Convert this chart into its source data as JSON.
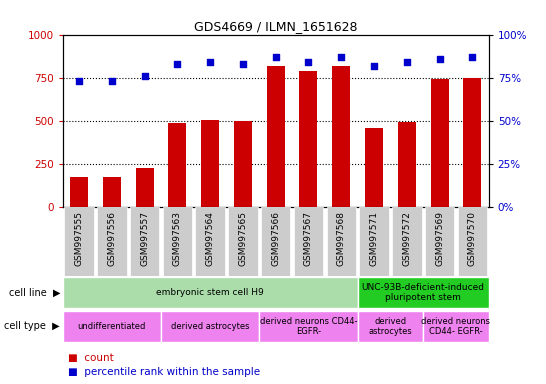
{
  "title": "GDS4669 / ILMN_1651628",
  "samples": [
    "GSM997555",
    "GSM997556",
    "GSM997557",
    "GSM997563",
    "GSM997564",
    "GSM997565",
    "GSM997566",
    "GSM997567",
    "GSM997568",
    "GSM997571",
    "GSM997572",
    "GSM997569",
    "GSM997570"
  ],
  "counts": [
    175,
    175,
    230,
    490,
    505,
    500,
    820,
    790,
    820,
    460,
    495,
    740,
    750
  ],
  "percentiles": [
    73,
    73,
    76,
    83,
    84,
    83,
    87,
    84,
    87,
    82,
    84,
    86,
    87
  ],
  "bar_color": "#cc0000",
  "dot_color": "#0000cc",
  "ylim_left": [
    0,
    1000
  ],
  "ylim_right": [
    0,
    100
  ],
  "yticks_left": [
    0,
    250,
    500,
    750,
    1000
  ],
  "yticks_right": [
    0,
    25,
    50,
    75,
    100
  ],
  "cell_line_groups": [
    {
      "label": "embryonic stem cell H9",
      "start": 0,
      "end": 9,
      "color": "#aaddaa"
    },
    {
      "label": "UNC-93B-deficient-induced\npluripotent stem",
      "start": 9,
      "end": 13,
      "color": "#22cc22"
    }
  ],
  "cell_type_groups": [
    {
      "label": "undifferentiated",
      "start": 0,
      "end": 3,
      "color": "#ee82ee"
    },
    {
      "label": "derived astrocytes",
      "start": 3,
      "end": 6,
      "color": "#ee82ee"
    },
    {
      "label": "derived neurons CD44-\nEGFR-",
      "start": 6,
      "end": 9,
      "color": "#ee82ee"
    },
    {
      "label": "derived\nastrocytes",
      "start": 9,
      "end": 11,
      "color": "#ee82ee"
    },
    {
      "label": "derived neurons\nCD44- EGFR-",
      "start": 11,
      "end": 13,
      "color": "#ee82ee"
    }
  ],
  "tick_bg_color": "#cccccc",
  "left_tick_color": "#cc0000",
  "right_tick_color": "#0000cc",
  "grid_dotted_vals": [
    250,
    500,
    750
  ],
  "bar_width": 0.55
}
